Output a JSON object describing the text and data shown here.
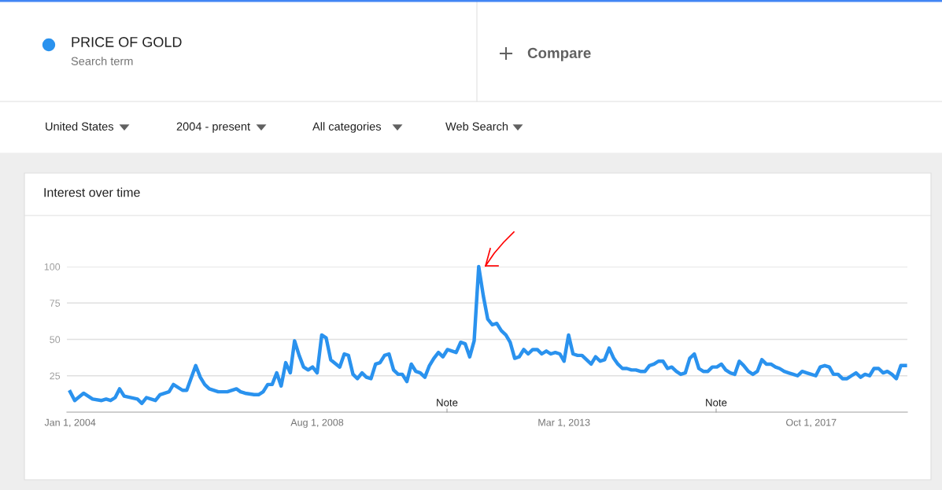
{
  "chart_data": {
    "type": "line",
    "title": "Interest over time",
    "annotations": [
      "Search term",
      "Compare",
      "United States",
      "2004 - present",
      "All categories",
      "Web Search",
      "Note",
      "Note"
    ],
    "legend": "top left",
    "grid": "y",
    "line_style": "solid",
    "marker": "none",
    "xlim": [
      "2003-12-10",
      "2019-07-15"
    ],
    "xticks": [
      {
        "value": "2004-01-01",
        "label": "Jan 1, 2004"
      },
      {
        "value": "2008-08-01",
        "label": "Aug 1, 2008"
      },
      {
        "value": "2013-03-01",
        "label": "Mar 1, 2013"
      },
      {
        "value": "2017-10-01",
        "label": "Oct 1, 2017"
      }
    ],
    "ylim": [
      0,
      100
    ],
    "yticks": [
      25,
      50,
      75,
      100
    ],
    "series": [
      {
        "name": "PRICE OF GOLD",
        "color": "#2a92ee",
        "x": [
          "2004-01",
          "2004-02",
          "2004-04",
          "2004-06",
          "2004-08",
          "2004-09",
          "2004-10",
          "2004-11",
          "2004-12",
          "2005-01",
          "2005-04",
          "2005-05",
          "2005-06",
          "2005-08",
          "2005-09",
          "2005-11",
          "2005-12",
          "2006-02",
          "2006-03",
          "2006-05",
          "2006-06",
          "2006-07",
          "2006-08",
          "2006-10",
          "2006-12",
          "2007-02",
          "2007-03",
          "2007-04",
          "2007-06",
          "2007-07",
          "2007-08",
          "2007-09",
          "2007-10",
          "2007-11",
          "2007-12",
          "2008-01",
          "2008-02",
          "2008-03",
          "2008-04",
          "2008-05",
          "2008-06",
          "2008-07",
          "2008-08",
          "2008-09",
          "2008-10",
          "2008-11",
          "2009-01",
          "2009-02",
          "2009-03",
          "2009-04",
          "2009-05",
          "2009-06",
          "2009-07",
          "2009-08",
          "2009-09",
          "2009-10",
          "2009-11",
          "2009-12",
          "2010-01",
          "2010-02",
          "2010-03",
          "2010-04",
          "2010-05",
          "2010-06",
          "2010-07",
          "2010-08",
          "2010-09",
          "2010-10",
          "2010-11",
          "2010-12",
          "2011-01",
          "2011-02",
          "2011-03",
          "2011-04",
          "2011-05",
          "2011-06",
          "2011-07",
          "2011-08",
          "2011-09",
          "2011-10",
          "2011-11",
          "2011-12",
          "2012-01",
          "2012-02",
          "2012-03",
          "2012-04",
          "2012-05",
          "2012-06",
          "2012-07",
          "2012-08",
          "2012-09",
          "2012-10",
          "2012-11",
          "2012-12",
          "2013-01",
          "2013-02",
          "2013-03",
          "2013-04",
          "2013-05",
          "2013-06",
          "2013-07",
          "2013-08",
          "2013-09",
          "2013-10",
          "2013-11",
          "2013-12",
          "2014-01",
          "2014-02",
          "2014-03",
          "2014-04",
          "2014-05",
          "2014-06",
          "2014-07",
          "2014-08",
          "2014-09",
          "2014-10",
          "2014-11",
          "2014-12",
          "2015-01",
          "2015-02",
          "2015-03",
          "2015-04",
          "2015-05",
          "2015-06",
          "2015-07",
          "2015-08",
          "2015-09",
          "2015-10",
          "2015-11",
          "2015-12",
          "2016-01",
          "2016-02",
          "2016-03",
          "2016-04",
          "2016-05",
          "2016-06",
          "2016-07",
          "2016-08",
          "2016-09",
          "2016-10",
          "2016-11",
          "2016-12",
          "2017-01",
          "2017-02",
          "2017-03",
          "2017-04",
          "2017-05",
          "2017-06",
          "2017-07",
          "2017-08",
          "2017-09",
          "2017-10",
          "2017-11",
          "2017-12",
          "2018-01",
          "2018-02",
          "2018-03",
          "2018-04",
          "2018-05",
          "2018-06",
          "2018-07",
          "2018-08",
          "2018-09",
          "2018-10",
          "2018-11",
          "2018-12",
          "2019-01",
          "2019-02",
          "2019-03",
          "2019-04",
          "2019-05",
          "2019-06",
          "2019-07"
        ],
        "values": [
          14,
          8,
          13,
          9,
          8,
          9,
          8,
          10,
          16,
          11,
          9,
          6,
          10,
          8,
          12,
          14,
          19,
          15,
          15,
          32,
          24,
          19,
          16,
          14,
          14,
          16,
          14,
          13,
          12,
          12,
          14,
          19,
          19,
          27,
          18,
          34,
          27,
          49,
          39,
          31,
          29,
          31,
          27,
          53,
          51,
          36,
          31,
          40,
          39,
          26,
          23,
          27,
          24,
          23,
          33,
          34,
          39,
          40,
          29,
          26,
          26,
          21,
          33,
          28,
          27,
          24,
          32,
          37,
          41,
          38,
          43,
          42,
          41,
          48,
          47,
          38,
          49,
          100,
          80,
          64,
          60,
          61,
          56,
          53,
          48,
          37,
          38,
          43,
          40,
          43,
          43,
          40,
          42,
          40,
          41,
          40,
          35,
          53,
          40,
          39,
          39,
          36,
          33,
          38,
          35,
          36,
          44,
          37,
          33,
          30,
          30,
          29,
          29,
          28,
          28,
          32,
          33,
          35,
          35,
          30,
          31,
          28,
          26,
          27,
          37,
          40,
          30,
          28,
          28,
          31,
          31,
          33,
          29,
          27,
          26,
          35,
          32,
          28,
          26,
          28,
          36,
          33,
          33,
          31,
          30,
          28,
          27,
          26,
          25,
          28,
          27,
          26,
          25,
          31,
          32,
          31,
          26,
          26,
          23,
          23,
          25,
          27,
          24,
          26,
          25,
          30,
          30,
          27,
          28,
          26,
          23,
          32,
          32
        ]
      }
    ]
  }
}
